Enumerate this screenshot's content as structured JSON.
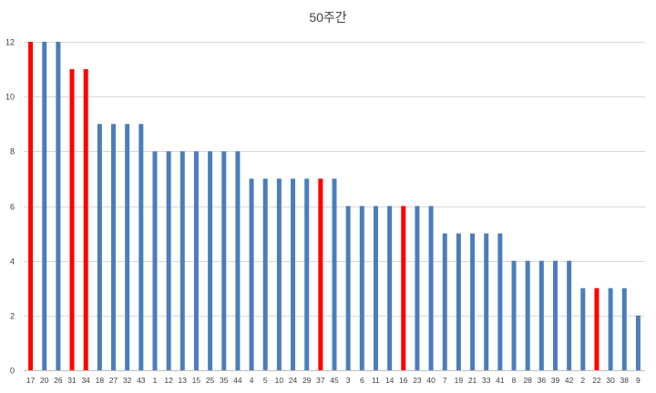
{
  "chart_data": {
    "type": "bar",
    "title": "50주간",
    "xlabel": "",
    "ylabel": "",
    "ylim": [
      0,
      12
    ],
    "yticks": [
      0,
      2,
      4,
      6,
      8,
      10,
      12
    ],
    "grid": true,
    "legend": "none",
    "categories": [
      "17",
      "20",
      "26",
      "31",
      "34",
      "18",
      "27",
      "32",
      "43",
      "1",
      "12",
      "13",
      "15",
      "25",
      "35",
      "44",
      "4",
      "5",
      "10",
      "24",
      "29",
      "37",
      "45",
      "3",
      "6",
      "11",
      "14",
      "16",
      "23",
      "40",
      "7",
      "19",
      "21",
      "33",
      "41",
      "8",
      "28",
      "36",
      "39",
      "42",
      "2",
      "22",
      "30",
      "38",
      "9"
    ],
    "values": [
      12,
      12,
      12,
      11,
      11,
      9,
      9,
      9,
      9,
      8,
      8,
      8,
      8,
      8,
      8,
      8,
      7,
      7,
      7,
      7,
      7,
      7,
      7,
      6,
      6,
      6,
      6,
      6,
      6,
      6,
      5,
      5,
      5,
      5,
      5,
      4,
      4,
      4,
      4,
      4,
      3,
      3,
      3,
      3,
      2
    ],
    "highlighted": [
      "17",
      "31",
      "34",
      "37",
      "16",
      "22"
    ],
    "colors": {
      "bar": "#4a7ebb",
      "highlight": "#ff0000",
      "grid": "#d9d9d9",
      "text": "#404040"
    }
  }
}
